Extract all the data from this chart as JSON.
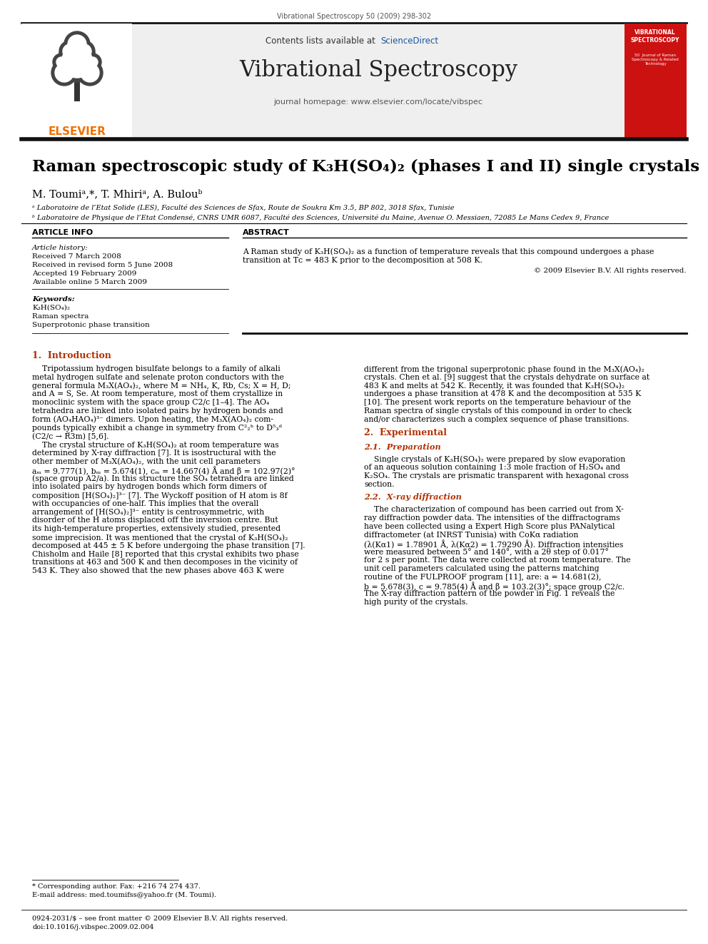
{
  "journal_ref": "Vibrational Spectroscopy 50 (2009) 298-302",
  "header_text_pre": "Contents lists available at ",
  "header_text_blue": "ScienceDirect",
  "journal_name": "Vibrational Spectroscopy",
  "journal_homepage": "journal homepage: www.elsevier.com/locate/vibspec",
  "title": "Raman spectroscopic study of K₃H(SO₄)₂ (phases I and II) single crystals",
  "author_line": "M. Toumiᵃ,*, T. Mhiriᵃ, A. Bulouᵇ",
  "affil_a": "ᵃ Laboratoire de l’Etat Solide (LES), Faculté des Sciences de Sfax, Route de Soukra Km 3.5, BP 802, 3018 Sfax, Tunisie",
  "affil_b": "ᵇ Laboratoire de Physique de l’Etat Condensé, CNRS UMR 6087, Faculté des Sciences, Université du Maine, Avenue O. Messiaen, 72085 Le Mans Cedex 9, France",
  "article_info_header": "ARTICLE INFO",
  "abstract_header": "ABSTRACT",
  "article_history_label": "Article history:",
  "received1": "Received 7 March 2008",
  "received2": "Received in revised form 5 June 2008",
  "accepted": "Accepted 19 February 2009",
  "available": "Available online 5 March 2009",
  "keywords_label": "Keywords:",
  "kw1": "K₃H(SO₄)₂",
  "kw2": "Raman spectra",
  "kw3": "Superprotonic phase transition",
  "abstract_text1": "A Raman study of K₃H(SO₄)₂ as a function of temperature reveals that this compound undergoes a phase",
  "abstract_text2": "transition at Tᴄ = 483 K prior to the decomposition at 508 K.",
  "copyright": "© 2009 Elsevier B.V. All rights reserved.",
  "sec1_title": "1.  Introduction",
  "sec2_title": "2.  Experimental",
  "sec21_title": "2.1.  Preparation",
  "sec22_title": "2.2.  X-ray diffraction",
  "footnote1": "* Corresponding author. Fax: +216 74 274 437.",
  "footnote2": "E-mail address: med.toumifss@yahoo.fr (M. Toumi).",
  "footer_left": "0924-2031/$ – see front matter © 2009 Elsevier B.V. All rights reserved.",
  "footer_doi": "doi:10.1016/j.vibspec.2009.02.004",
  "bg_color": "#ffffff",
  "gray_bg": "#efefef",
  "elsevier_orange": "#f07000",
  "sciencedirect_blue": "#1a56a0",
  "section_red": "#b03000",
  "blue_link": "#1a56a0"
}
